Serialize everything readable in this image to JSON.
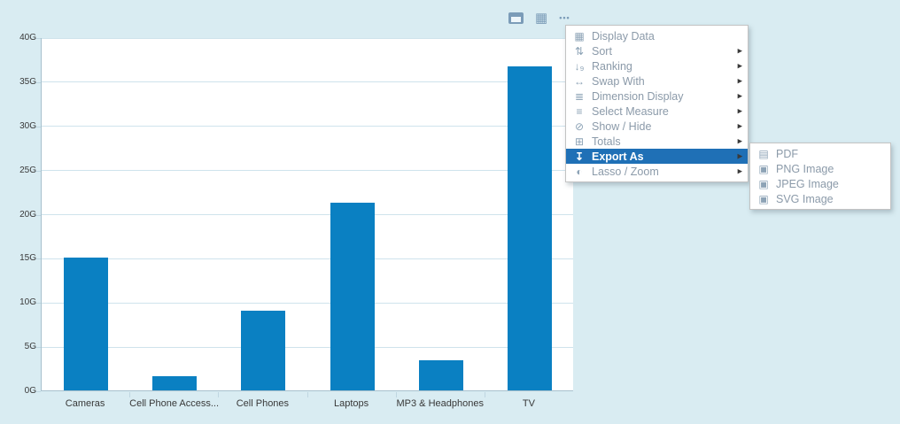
{
  "chart_data": {
    "type": "bar",
    "title": "",
    "xlabel": "",
    "ylabel": "",
    "categories": [
      "Cameras",
      "Cell Phone Access...",
      "Cell Phones",
      "Laptops",
      "MP3 & Headphones",
      "TV"
    ],
    "values": [
      15,
      1.6,
      9,
      21.3,
      3.4,
      36.7
    ],
    "unit": "G",
    "ylim": [
      0,
      40
    ],
    "ytick_step": 5,
    "ytick_labels": [
      "0G",
      "5G",
      "10G",
      "15G",
      "20G",
      "25G",
      "30G",
      "35G",
      "40G"
    ],
    "grid": true,
    "legend": "none",
    "bar_color": "#0a80c2"
  },
  "toolbar": {
    "icons": [
      {
        "name": "window-icon"
      },
      {
        "name": "table-icon"
      },
      {
        "name": "more-options-icon",
        "glyph": "•••"
      }
    ]
  },
  "context_menu": {
    "items": [
      {
        "label": "Display Data",
        "icon": "display-data-icon",
        "has_submenu": false,
        "highlighted": false
      },
      {
        "label": "Sort",
        "icon": "sort-icon",
        "has_submenu": true,
        "highlighted": false
      },
      {
        "label": "Ranking",
        "icon": "ranking-icon",
        "has_submenu": true,
        "highlighted": false
      },
      {
        "label": "Swap With",
        "icon": "swap-with-icon",
        "has_submenu": true,
        "highlighted": false
      },
      {
        "label": "Dimension Display",
        "icon": "dimension-display-icon",
        "has_submenu": true,
        "highlighted": false
      },
      {
        "label": "Select Measure",
        "icon": "select-measure-icon",
        "has_submenu": true,
        "highlighted": false
      },
      {
        "label": "Show / Hide",
        "icon": "show-hide-icon",
        "has_submenu": true,
        "highlighted": false
      },
      {
        "label": "Totals",
        "icon": "totals-icon",
        "has_submenu": true,
        "highlighted": false
      },
      {
        "label": "Export As",
        "icon": "export-as-icon",
        "has_submenu": true,
        "highlighted": true
      },
      {
        "label": "Lasso / Zoom",
        "icon": "lasso-zoom-icon",
        "has_submenu": true,
        "highlighted": false
      }
    ]
  },
  "export_submenu": {
    "items": [
      {
        "label": "PDF",
        "icon": "file-pdf-icon"
      },
      {
        "label": "PNG Image",
        "icon": "file-image-icon"
      },
      {
        "label": "JPEG Image",
        "icon": "file-image-icon"
      },
      {
        "label": "SVG Image",
        "icon": "file-image-icon"
      }
    ]
  },
  "icon_glyphs": {
    "display-data-icon": "▦",
    "sort-icon": "⇅",
    "ranking-icon": "↓₉",
    "swap-with-icon": "↔",
    "dimension-display-icon": "≣",
    "select-measure-icon": "≡",
    "show-hide-icon": "⊘",
    "totals-icon": "⊞",
    "export-as-icon": "↧",
    "lasso-zoom-icon": "◐",
    "file-pdf-icon": "▤",
    "file-image-icon": "▣",
    "submenu-arrow-icon": "▶"
  },
  "colors": {
    "background": "#d9ecf2",
    "plot_background": "#ffffff",
    "bar": "#0a80c2",
    "gridline": "#cfe3ec",
    "axis_line": "#a7c0cd",
    "tick": "#bfd6e1",
    "label_text": "#383838",
    "menu_text": "#8b9aa9",
    "menu_icon": "#8da3b6",
    "menu_highlight": "#1f70b6",
    "menu_highlight_text": "#ffffff",
    "toolbar_icon": "#7b9cb8"
  }
}
